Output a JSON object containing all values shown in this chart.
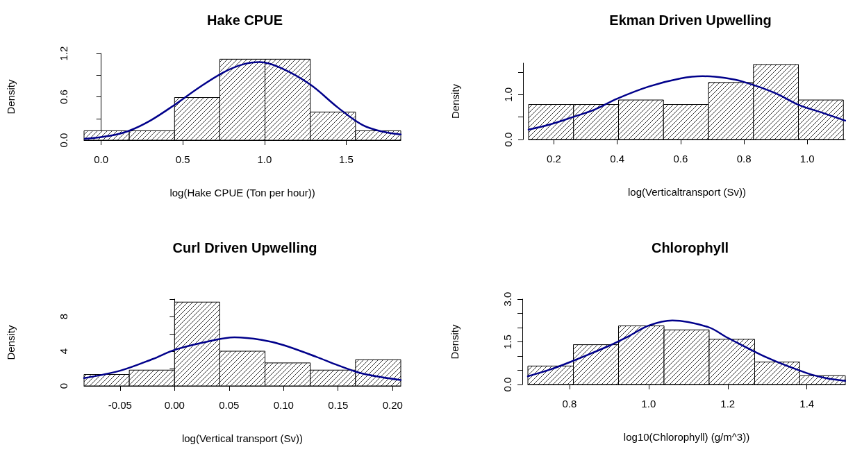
{
  "chart_data": [
    {
      "type": "histogram",
      "title": "Hake CPUE",
      "xlabel": "log(Hake CPUE (Ton per hour))",
      "ylabel": "Density",
      "xlim": [
        -0.105,
        1.834
      ],
      "xticks": [
        {
          "value": 0,
          "label": "0.0"
        },
        0.5,
        {
          "value": 1,
          "label": "1.0"
        },
        1.5
      ],
      "ylim": [
        0,
        1.2
      ],
      "yticks": [
        {
          "value": 0,
          "label": "0.0"
        },
        {
          "value": 0.3,
          "label": null
        },
        0.6,
        {
          "value": 0.9,
          "label": null
        },
        1.2
      ],
      "series": [
        {
          "color": "#000000",
          "bins": [
            -0.105,
            0.172,
            0.449,
            0.726,
            1.003,
            1.28,
            1.557,
            1.834
          ],
          "values": [
            0.13,
            0.13,
            0.59,
            1.12,
            1.12,
            0.39,
            0.13
          ]
        },
        {
          "type": "line",
          "color": "#00008b",
          "x": [
            -0.1,
            0.05,
            0.17,
            0.3,
            0.45,
            0.6,
            0.75,
            0.87,
            0.97,
            1.1,
            1.28,
            1.45,
            1.6,
            1.72,
            1.834
          ],
          "values": [
            0.02,
            0.06,
            0.13,
            0.27,
            0.49,
            0.73,
            0.94,
            1.05,
            1.08,
            1.0,
            0.77,
            0.45,
            0.21,
            0.12,
            0.08
          ]
        }
      ]
    },
    {
      "type": "histogram",
      "title": "Ekman Driven Upwelling",
      "xlabel": "log(Verticaltransport (Sv))",
      "ylabel": "Density",
      "xlim": [
        0.12,
        1.12
      ],
      "xticks": [
        0.2,
        0.4,
        0.6,
        0.8,
        {
          "value": 1,
          "label": "1.0"
        }
      ],
      "ylim": [
        0,
        1.7
      ],
      "yticks": [
        {
          "value": 0,
          "label": "0.0"
        },
        {
          "value": 0.5,
          "label": null
        },
        {
          "value": 1,
          "label": "1.0"
        },
        {
          "value": 1.5,
          "label": null
        }
      ],
      "series": [
        {
          "color": "#000000",
          "bins": [
            0.12,
            0.262,
            0.404,
            0.546,
            0.688,
            0.83,
            0.972,
            1.114
          ],
          "values": [
            0.78,
            0.78,
            0.88,
            0.78,
            1.27,
            1.67,
            0.88
          ]
        },
        {
          "type": "line",
          "color": "#00008b",
          "x": [
            0.12,
            0.19,
            0.26,
            0.33,
            0.4,
            0.5,
            0.6,
            0.67,
            0.74,
            0.8,
            0.9,
            0.97,
            1.05,
            1.12
          ],
          "values": [
            0.22,
            0.34,
            0.5,
            0.67,
            0.91,
            1.18,
            1.36,
            1.41,
            1.37,
            1.28,
            1.03,
            0.78,
            0.59,
            0.42
          ]
        }
      ]
    },
    {
      "type": "histogram",
      "title": "Curl Driven Upwelling",
      "xlabel": "log(Vertical transport (Sv))",
      "ylabel": "Density",
      "xlim": [
        -0.083,
        0.2075
      ],
      "xticks": [
        -0.05,
        {
          "value": 0,
          "label": "0.00"
        },
        0.05,
        {
          "value": 0.1,
          "label": "0.10"
        },
        0.15,
        {
          "value": 0.2,
          "label": "0.20"
        }
      ],
      "ylim": [
        0,
        10
      ],
      "yticks": [
        0,
        {
          "value": 2,
          "label": null
        },
        4,
        {
          "value": 6,
          "label": null
        },
        8,
        {
          "value": 10,
          "label": null
        }
      ],
      "series": [
        {
          "color": "#000000",
          "bins": [
            -0.083,
            -0.0415,
            0,
            0.0415,
            0.083,
            0.1245,
            0.166,
            0.2075
          ],
          "values": [
            1.32,
            1.82,
            9.66,
            4.0,
            2.65,
            1.82,
            3.02
          ]
        },
        {
          "type": "line",
          "color": "#00008b",
          "x": [
            -0.083,
            -0.05,
            -0.02,
            0,
            0.03,
            0.055,
            0.08,
            0.1,
            0.13,
            0.15,
            0.17,
            0.19,
            0.2075
          ],
          "values": [
            0.9,
            1.75,
            3.1,
            4.15,
            5.1,
            5.6,
            5.3,
            4.7,
            3.35,
            2.37,
            1.5,
            1.0,
            0.68
          ]
        }
      ]
    },
    {
      "type": "histogram",
      "title": "Chlorophyll",
      "xlabel": "log10(Chlorophyll) (g/m^3))",
      "ylabel": "Density",
      "xlim": [
        0.695,
        1.497
      ],
      "xticks": [
        0.8,
        {
          "value": 1,
          "label": "1.0"
        },
        1.2,
        1.4
      ],
      "ylim": [
        0,
        3
      ],
      "yticks": [
        {
          "value": 0,
          "label": "0.0"
        },
        {
          "value": 0.5,
          "label": null
        },
        {
          "value": 1,
          "label": null
        },
        1.5,
        {
          "value": 2,
          "label": null
        },
        {
          "value": 2.5,
          "label": null
        },
        {
          "value": 3,
          "label": "3.0"
        }
      ],
      "series": [
        {
          "color": "#000000",
          "bins": [
            0.695,
            0.81,
            0.924,
            1.039,
            1.153,
            1.268,
            1.382,
            1.497
          ],
          "values": [
            0.65,
            1.4,
            2.06,
            1.92,
            1.59,
            0.79,
            0.31
          ]
        },
        {
          "type": "line",
          "color": "#00008b",
          "x": [
            0.695,
            0.75,
            0.8,
            0.9,
            0.95,
            1.0,
            1.06,
            1.15,
            1.2,
            1.3,
            1.4,
            1.45,
            1.497
          ],
          "values": [
            0.29,
            0.52,
            0.78,
            1.36,
            1.7,
            2.07,
            2.25,
            2.02,
            1.64,
            0.94,
            0.4,
            0.22,
            0.13
          ]
        }
      ]
    }
  ]
}
